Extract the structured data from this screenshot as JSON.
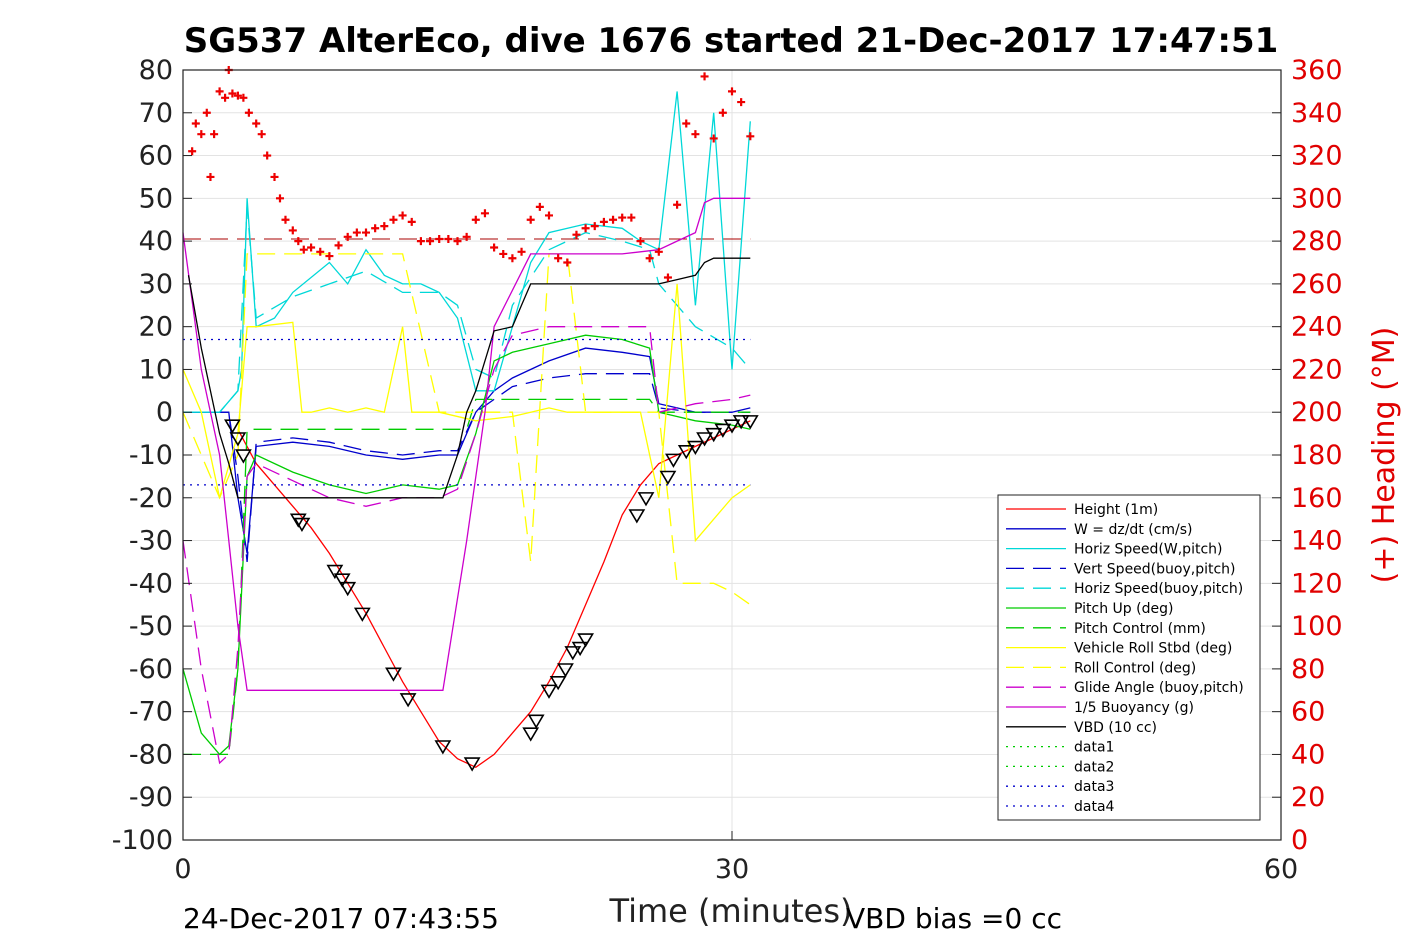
{
  "chart_data": {
    "type": "line",
    "title": "SG537 AlterEco, dive 1676 started 21-Dec-2017 17:47:51",
    "xlabel": "Time (minutes)",
    "ylabel": "",
    "ylabel_right": "(+) Heading (°M)",
    "xlim": [
      0,
      60
    ],
    "ylim": [
      -100,
      80
    ],
    "ylim_right": [
      0,
      360
    ],
    "x_ticks": [
      "0",
      "30",
      "60"
    ],
    "y_ticks": [
      "80",
      "70",
      "60",
      "50",
      "40",
      "30",
      "20",
      "10",
      "0",
      "-10",
      "-20",
      "-30",
      "-40",
      "-50",
      "-60",
      "-70",
      "-80",
      "-90",
      "-100"
    ],
    "y_ticks_right": [
      "360",
      "340",
      "320",
      "300",
      "280",
      "260",
      "240",
      "220",
      "200",
      "180",
      "160",
      "140",
      "120",
      "100",
      "80",
      "60",
      "40",
      "20",
      "0"
    ],
    "grid": true,
    "legend_position": "bottom-right",
    "footer_left": "24-Dec-2017 07:43:55",
    "footer_right": "VBD bias =0 cc",
    "colors": {
      "height": "#ff0000",
      "w": "#0000cc",
      "horiz_speed": "#00d8d8",
      "pitch": "#00cc00",
      "roll": "#ffff00",
      "glide": "#cc00cc",
      "vbd": "#000000",
      "heading": "#ee0000"
    },
    "series": [
      {
        "name": "Height (1m)",
        "style": "solid",
        "color": "#ff0000",
        "x": [
          3,
          4,
          5,
          6,
          7,
          8,
          9,
          10,
          11,
          12,
          13,
          14,
          15,
          16,
          17,
          18,
          19,
          20,
          21,
          22,
          23,
          24,
          25,
          26,
          27,
          28,
          29,
          30,
          31
        ],
        "y": [
          -4,
          -12,
          -17,
          -22,
          -27,
          -33,
          -40,
          -47,
          -55,
          -63,
          -70,
          -77,
          -81,
          -83,
          -80,
          -75,
          -70,
          -63,
          -55,
          -45,
          -35,
          -24,
          -17,
          -12,
          -10,
          -8,
          -6,
          -4,
          -2
        ]
      },
      {
        "name": "W = dz/dt (cm/s)",
        "style": "solid",
        "color": "#0000cc",
        "x": [
          0,
          2.5,
          3,
          3.5,
          4,
          6,
          8,
          10,
          12,
          14,
          15,
          16,
          17,
          18,
          20,
          22,
          24,
          25.5,
          26,
          27,
          28,
          29,
          30,
          31
        ],
        "y": [
          0,
          0,
          -20,
          -33,
          -8,
          -7,
          -8,
          -10,
          -11,
          -10,
          -10,
          0,
          5,
          8,
          12,
          15,
          14,
          13,
          2,
          1,
          0,
          0,
          0,
          1
        ]
      },
      {
        "name": "Horiz Speed(W,pitch)",
        "style": "solid",
        "color": "#00d8d8",
        "x": [
          0,
          2,
          3,
          3.2,
          3.5,
          4,
          5,
          6,
          8,
          9,
          10,
          11,
          12,
          13,
          14,
          15,
          16,
          17,
          18,
          19,
          20,
          22,
          24,
          25,
          26,
          27,
          28,
          29,
          30,
          31
        ],
        "y": [
          0,
          0,
          5,
          10,
          50,
          20,
          22,
          28,
          35,
          30,
          38,
          32,
          30,
          30,
          28,
          22,
          5,
          5,
          20,
          35,
          42,
          44,
          43,
          40,
          38,
          75,
          25,
          70,
          10,
          68
        ]
      },
      {
        "name": "Vert Speed(buoy,pitch)",
        "style": "dashed",
        "color": "#0000cc",
        "x": [
          0,
          2.5,
          3,
          3.5,
          4,
          6,
          8,
          10,
          12,
          14,
          15,
          16,
          17,
          18,
          20,
          22,
          24,
          25.5,
          26,
          28,
          30,
          31
        ],
        "y": [
          0,
          0,
          -15,
          -35,
          -7,
          -6,
          -7,
          -9,
          -10,
          -9,
          -9,
          0,
          3,
          6,
          8,
          9,
          9,
          9,
          1,
          0,
          0,
          0
        ]
      },
      {
        "name": "Horiz Speed(buoy,pitch)",
        "style": "dashed",
        "color": "#00d8d8",
        "x": [
          0,
          2,
          3,
          3.5,
          4,
          6,
          8,
          10,
          12,
          14,
          15,
          16,
          17,
          18,
          20,
          22,
          24,
          25.5,
          26,
          28,
          30,
          31
        ],
        "y": [
          0,
          0,
          5,
          48,
          22,
          27,
          30,
          33,
          28,
          28,
          25,
          10,
          8,
          25,
          38,
          42,
          40,
          38,
          30,
          20,
          15,
          10
        ]
      },
      {
        "name": "Pitch Up (deg)",
        "style": "solid",
        "color": "#00cc00",
        "x": [
          0,
          1,
          2,
          2.5,
          3,
          3.5,
          4,
          6,
          8,
          10,
          12,
          14,
          15,
          16,
          17,
          18,
          20,
          22,
          24,
          25.5,
          26,
          28,
          30,
          31
        ],
        "y": [
          -60,
          -75,
          -80,
          -78,
          -60,
          -15,
          -10,
          -14,
          -17,
          -19,
          -17,
          -18,
          -17,
          -5,
          12,
          14,
          16,
          18,
          17,
          15,
          0,
          -2,
          -3,
          -4
        ]
      },
      {
        "name": "Pitch Control (mm)",
        "style": "dashed",
        "color": "#00cc00",
        "x": [
          0,
          2,
          2.5,
          3,
          3.5,
          4,
          8,
          12,
          14.5,
          15.5,
          16,
          18,
          20,
          22,
          24,
          25.5,
          26,
          31
        ],
        "y": [
          -80,
          -80,
          -80,
          -60,
          -4,
          -4,
          -4,
          -4,
          -4,
          -4,
          3,
          3,
          3,
          3,
          3,
          3,
          0,
          0
        ]
      },
      {
        "name": "Vehicle Roll Stbd (deg)",
        "style": "solid",
        "color": "#ffff00",
        "x": [
          0,
          1,
          2,
          3,
          3.5,
          4,
          6,
          6.5,
          7,
          8,
          9,
          10,
          11,
          12,
          12.5,
          13,
          14,
          16,
          18,
          19,
          20,
          21,
          22,
          23,
          24,
          25,
          26,
          27,
          28,
          29,
          30,
          31
        ],
        "y": [
          10,
          0,
          -20,
          -5,
          20,
          20,
          21,
          0,
          0,
          1,
          0,
          1,
          0,
          20,
          0,
          0,
          0,
          -2,
          -1,
          0,
          1,
          0,
          0,
          0,
          0,
          0,
          -20,
          30,
          -30,
          -25,
          -20,
          -17
        ]
      },
      {
        "name": "Roll Control (deg)",
        "style": "dashed",
        "color": "#ffff00",
        "x": [
          0,
          2,
          3,
          3.5,
          4,
          8,
          10,
          12,
          14,
          16,
          18,
          19,
          20,
          21,
          22,
          24,
          25,
          26,
          27,
          28,
          29,
          30,
          31
        ],
        "y": [
          0,
          -20,
          -10,
          37,
          37,
          37,
          37,
          37,
          0,
          0,
          0,
          -35,
          37,
          37,
          0,
          0,
          0,
          0,
          -40,
          -40,
          -40,
          -42,
          -45
        ]
      },
      {
        "name": "Glide Angle (buoy,pitch)",
        "style": "dashed",
        "color": "#cc00cc",
        "x": [
          0,
          1,
          2,
          2.5,
          3,
          3.5,
          4,
          6,
          8,
          10,
          12,
          14,
          15,
          16,
          17,
          18,
          20,
          22,
          24,
          25.5,
          26,
          28,
          30,
          31
        ],
        "y": [
          -30,
          -60,
          -82,
          -80,
          -55,
          -15,
          -12,
          -16,
          -20,
          -22,
          -20,
          -20,
          -18,
          -5,
          10,
          18,
          20,
          20,
          20,
          20,
          0,
          2,
          3,
          4
        ]
      },
      {
        "name": "1/5 Buoyancy (g)",
        "style": "solid",
        "color": "#cc00cc",
        "x": [
          0,
          1,
          2,
          2.5,
          3,
          3.5,
          6,
          10,
          14,
          14.2,
          15.5,
          16.5,
          17,
          19,
          20,
          22,
          24,
          26,
          27,
          28,
          28.5,
          29,
          30,
          31
        ],
        "y": [
          42,
          10,
          -10,
          -30,
          -50,
          -65,
          -65,
          -65,
          -65,
          -65,
          -30,
          0,
          20,
          37,
          37,
          37,
          37,
          38,
          40,
          42,
          49,
          50,
          50,
          50
        ]
      },
      {
        "name": "VBD (10 cc)",
        "style": "solid",
        "color": "#000000",
        "x": [
          0.3,
          1,
          2,
          2.5,
          3,
          6,
          10,
          14.2,
          15,
          15.5,
          16,
          17,
          18,
          18.5,
          19,
          20,
          22,
          24,
          26,
          27,
          28,
          28.5,
          29,
          31
        ],
        "y": [
          32,
          15,
          -5,
          -12,
          -20,
          -20,
          -20,
          -20,
          -10,
          0,
          5,
          19,
          20,
          25,
          30,
          30,
          30,
          30,
          30,
          31,
          32,
          35,
          36,
          36
        ]
      },
      {
        "name": "data1",
        "style": "dotted",
        "color": "#00cc00",
        "x": [],
        "y": []
      },
      {
        "name": "data2",
        "style": "dotted",
        "color": "#00cc00",
        "x": [],
        "y": []
      },
      {
        "name": "data3",
        "style": "dotted",
        "color": "#0000cc",
        "x": [
          0,
          31
        ],
        "y": [
          17,
          17
        ]
      },
      {
        "name": "data4",
        "style": "dotted",
        "color": "#0000cc",
        "x": [
          0,
          31
        ],
        "y": [
          -17,
          -17
        ]
      }
    ],
    "heading_points": {
      "marker": "+",
      "color": "#ee0000",
      "axis": "right",
      "x": [
        0.5,
        0.7,
        1,
        1.3,
        1.5,
        1.7,
        2,
        2.3,
        2.5,
        2.7,
        3,
        3.3,
        3.6,
        4,
        4.3,
        4.6,
        5,
        5.3,
        5.6,
        6,
        6.3,
        6.6,
        7,
        7.5,
        8,
        8.5,
        9,
        9.5,
        10,
        10.5,
        11,
        11.5,
        12,
        12.5,
        13,
        13.5,
        14,
        14.5,
        15,
        15.5,
        16,
        16.5,
        17,
        17.5,
        18,
        18.5,
        19,
        19.5,
        20,
        20.5,
        21,
        21.5,
        22,
        22.5,
        23,
        23.5,
        24,
        24.5,
        25,
        25.5,
        26,
        26.5,
        27,
        27.5,
        28,
        28.5,
        29,
        29.5,
        30,
        30.5,
        31
      ],
      "y": [
        322,
        335,
        330,
        340,
        310,
        330,
        350,
        347,
        360,
        349,
        348,
        347,
        340,
        335,
        330,
        320,
        310,
        300,
        290,
        285,
        280,
        276,
        277,
        275,
        273,
        278,
        282,
        284,
        284,
        286,
        287,
        290,
        292,
        289,
        280,
        280,
        281,
        281,
        280,
        282,
        290,
        293,
        277,
        274,
        272,
        275,
        290,
        296,
        292,
        272,
        270,
        283,
        286,
        287,
        289,
        290,
        291,
        291,
        280,
        272,
        275,
        263,
        297,
        335,
        330,
        357,
        328,
        340,
        350,
        345,
        329
      ]
    },
    "glider_markers": {
      "marker": "triangle",
      "color": "#000000",
      "x": [
        2.7,
        3,
        3.3,
        6.3,
        6.5,
        8.3,
        8.7,
        9,
        9.8,
        11.5,
        12.3,
        14.2,
        15.8,
        19,
        19.3,
        20,
        20.5,
        20.9,
        21.3,
        21.7,
        22,
        24.8,
        25.3,
        26.5,
        26.8,
        27.5,
        28,
        28.5,
        29,
        29.5,
        30,
        30.5,
        31
      ],
      "y": [
        -3,
        -6,
        -10,
        -25,
        -26,
        -37,
        -39,
        -41,
        -47,
        -61,
        -67,
        -78,
        -82,
        -75,
        -72,
        -65,
        -63,
        -60,
        -56,
        -55,
        -53,
        -24,
        -20,
        -15,
        -11,
        -9,
        -8,
        -6,
        -5,
        -4,
        -3,
        -2,
        -2
      ]
    },
    "reference_lines": [
      {
        "axis": "right",
        "y": 281,
        "style": "dashed",
        "color": "#aa0000"
      }
    ],
    "legend": [
      "Height (1m)",
      "W = dz/dt (cm/s)",
      "Horiz Speed(W,pitch)",
      "Vert Speed(buoy,pitch)",
      "Horiz Speed(buoy,pitch)",
      "Pitch Up (deg)",
      "Pitch Control (mm)",
      "Vehicle Roll Stbd (deg)",
      "Roll Control (deg)",
      "Glide Angle (buoy,pitch)",
      "1/5 Buoyancy (g)",
      "VBD (10 cc)",
      "data1",
      "data2",
      "data3",
      "data4"
    ]
  }
}
